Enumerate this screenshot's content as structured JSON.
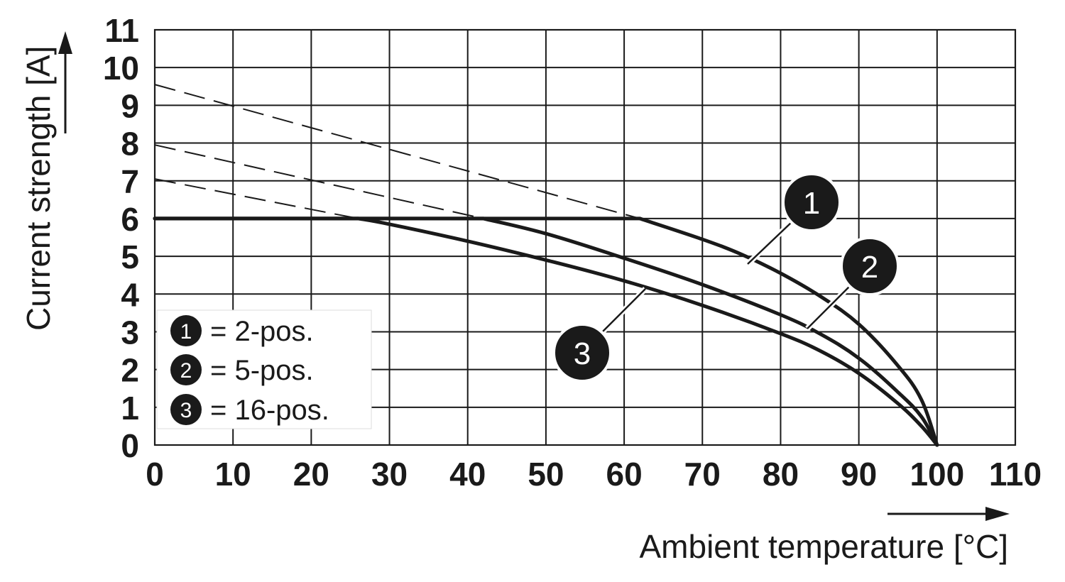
{
  "chart_data": {
    "type": "line",
    "xlabel": "Ambient temperature [°C]",
    "ylabel": "Current strength [A]",
    "xlim": [
      0,
      110
    ],
    "ylim": [
      0,
      11
    ],
    "x_ticks": [
      0,
      10,
      20,
      30,
      40,
      50,
      60,
      70,
      80,
      90,
      100,
      110
    ],
    "y_ticks": [
      0,
      1,
      2,
      3,
      4,
      5,
      6,
      7,
      8,
      9,
      10,
      11
    ],
    "grid": true,
    "legend_position": "bottom-left",
    "series": [
      {
        "name": "2-pos.",
        "marker": "1",
        "values": [
          [
            0,
            6
          ],
          [
            62,
            6
          ],
          [
            70,
            5.45
          ],
          [
            75,
            5.05
          ],
          [
            80,
            4.55
          ],
          [
            85,
            3.95
          ],
          [
            90,
            3.2
          ],
          [
            95,
            2.1
          ],
          [
            98,
            1.2
          ],
          [
            100,
            0
          ]
        ],
        "dashed_extension": [
          [
            0,
            9.55
          ],
          [
            62,
            6
          ]
        ]
      },
      {
        "name": "5-pos.",
        "marker": "2",
        "values": [
          [
            0,
            6
          ],
          [
            42,
            6
          ],
          [
            50,
            5.6
          ],
          [
            60,
            4.95
          ],
          [
            70,
            4.25
          ],
          [
            80,
            3.45
          ],
          [
            85,
            2.95
          ],
          [
            90,
            2.3
          ],
          [
            95,
            1.4
          ],
          [
            98,
            0.75
          ],
          [
            100,
            0
          ]
        ],
        "dashed_extension": [
          [
            0,
            7.95
          ],
          [
            42,
            6
          ]
        ]
      },
      {
        "name": "16-pos.",
        "marker": "3",
        "values": [
          [
            0,
            6
          ],
          [
            26,
            6
          ],
          [
            30,
            5.85
          ],
          [
            40,
            5.4
          ],
          [
            50,
            4.9
          ],
          [
            60,
            4.35
          ],
          [
            70,
            3.7
          ],
          [
            80,
            2.95
          ],
          [
            85,
            2.5
          ],
          [
            90,
            1.9
          ],
          [
            95,
            1.1
          ],
          [
            98,
            0.5
          ],
          [
            100,
            0
          ]
        ],
        "dashed_extension": [
          [
            0,
            7.05
          ],
          [
            26,
            6
          ]
        ]
      }
    ],
    "legend": [
      {
        "marker": "1",
        "label": "= 2-pos."
      },
      {
        "marker": "2",
        "label": "= 5-pos."
      },
      {
        "marker": "3",
        "label": "= 16-pos."
      }
    ],
    "colors": {
      "line": "#1a1a1a",
      "grid": "#1a1a1a",
      "marker_fill": "#1a1a1a",
      "background": "#ffffff"
    }
  }
}
